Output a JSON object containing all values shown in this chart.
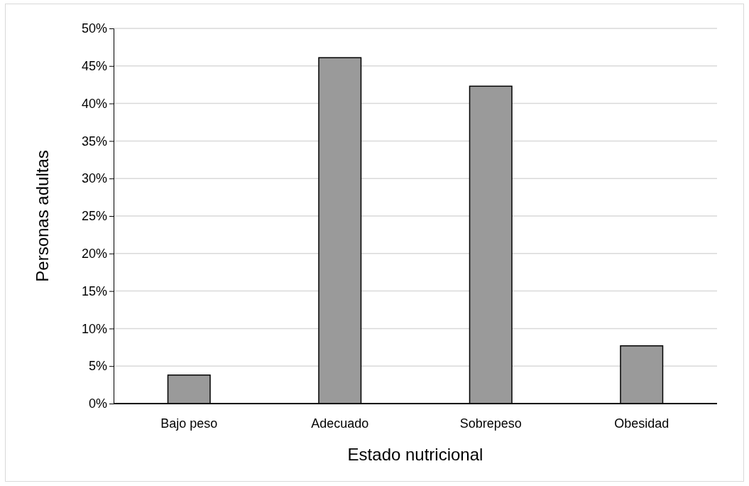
{
  "chart_data": {
    "type": "bar",
    "xlabel": "Estado nutricional",
    "ylabel": "Personas adultas",
    "categories": [
      "Bajo peso",
      "Adecuado",
      "Sobrepeso",
      "Obesidad"
    ],
    "values": [
      3.8,
      46.1,
      42.3,
      7.7
    ],
    "color": "#9a9a9a",
    "ylim": [
      0,
      50
    ],
    "yticks": [
      {
        "value": 0,
        "label": "0%"
      },
      {
        "value": 5,
        "label": "5%"
      },
      {
        "value": 10,
        "label": "10%"
      },
      {
        "value": 15,
        "label": "15%"
      },
      {
        "value": 20,
        "label": "20%"
      },
      {
        "value": 25,
        "label": "25%"
      },
      {
        "value": 30,
        "label": "30%"
      },
      {
        "value": 35,
        "label": "35%"
      },
      {
        "value": 40,
        "label": "40%"
      },
      {
        "value": 45,
        "label": "45%"
      },
      {
        "value": 50,
        "label": "50%"
      }
    ],
    "grid": "y"
  }
}
